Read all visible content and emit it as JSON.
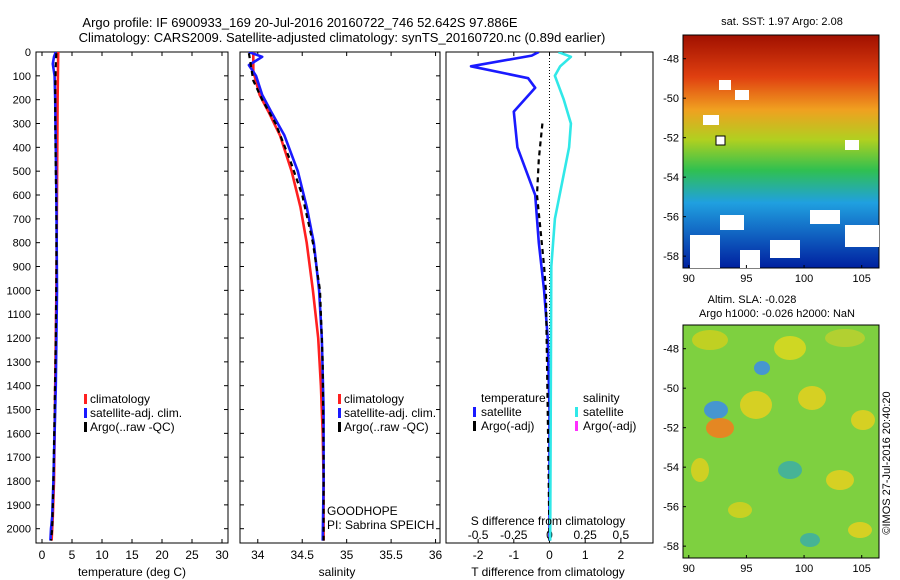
{
  "header": {
    "line1": "Argo profile: IF 6900933_169 20-Jul-2016 20160722_746 52.642S 97.886E",
    "line2": "Climatology: CARS2009. Satellite-adjusted climatology: synTS_20160720.nc (0.89d earlier)"
  },
  "colors": {
    "climatology": "#ff2020",
    "satellite": "#1a1aff",
    "argo": "#000000",
    "sal_satellite": "#30e8e8",
    "sal_argo": "#ff30ff"
  },
  "chart_data": [
    {
      "type": "line",
      "id": "temperature",
      "xlabel": "temperature (deg C)",
      "ylabel": "",
      "xlim": [
        -1,
        31
      ],
      "ylim": [
        2060,
        0
      ],
      "xticks": [
        0,
        5,
        10,
        15,
        20,
        25,
        30
      ],
      "yticks": [
        0,
        100,
        200,
        300,
        400,
        500,
        600,
        700,
        800,
        900,
        1000,
        1100,
        1200,
        1300,
        1400,
        1500,
        1600,
        1700,
        1800,
        1900,
        2000
      ],
      "legend": [
        "climatology",
        "satellite-adj. clim.",
        "Argo(..raw -QC)"
      ],
      "series": [
        {
          "name": "climatology",
          "x": [
            2.7,
            2.65,
            2.6,
            2.55,
            2.5,
            2.45,
            2.4,
            2.3,
            2.2,
            2.1,
            2.0,
            1.8,
            1.6
          ],
          "y": [
            0,
            100,
            200,
            400,
            600,
            800,
            1000,
            1200,
            1400,
            1600,
            1800,
            1950,
            2050
          ]
        },
        {
          "name": "satellite-adj. clim.",
          "x": [
            2.3,
            2.0,
            1.8,
            2.1,
            2.2,
            2.3,
            2.4,
            2.45,
            2.5,
            2.4,
            2.3,
            2.1,
            1.9,
            1.7,
            1.5,
            1.4
          ],
          "y": [
            0,
            20,
            50,
            100,
            200,
            400,
            600,
            800,
            1000,
            1200,
            1400,
            1600,
            1800,
            1950,
            2000,
            2050
          ]
        },
        {
          "name": "Argo(..raw -QC)",
          "x": [
            2.4,
            2.3,
            2.2,
            2.2,
            2.3,
            2.4,
            2.4,
            2.3,
            2.1,
            1.9,
            1.7,
            1.5
          ],
          "y": [
            5,
            50,
            150,
            300,
            500,
            700,
            900,
            1200,
            1500,
            1800,
            2000,
            2050
          ]
        }
      ]
    },
    {
      "type": "line",
      "id": "salinity",
      "xlabel": "salinity",
      "ylabel": "",
      "xlim": [
        33.8,
        36.05
      ],
      "ylim": [
        2060,
        0
      ],
      "xticks": [
        34,
        34.5,
        35,
        35.5,
        36
      ],
      "xticklabels": [
        "34",
        "34.5",
        "35",
        "35.5",
        "36"
      ],
      "legend": [
        "climatology",
        "satellite-adj. clim.",
        "Argo(..raw -QC)"
      ],
      "annotation": [
        "GOODHOPE",
        "PI: Sabrina SPEICH"
      ],
      "series": [
        {
          "name": "climatology",
          "x": [
            33.95,
            33.95,
            34.02,
            34.12,
            34.25,
            34.38,
            34.48,
            34.55,
            34.62,
            34.68,
            34.71,
            34.73,
            34.74,
            34.74
          ],
          "y": [
            0,
            80,
            180,
            250,
            350,
            500,
            650,
            800,
            1000,
            1200,
            1400,
            1600,
            1800,
            2050
          ]
        },
        {
          "name": "satellite-adj. clim.",
          "x": [
            33.9,
            34.05,
            33.9,
            33.98,
            34.05,
            34.15,
            34.3,
            34.45,
            34.55,
            34.63,
            34.69,
            34.72,
            34.74,
            34.74,
            34.73
          ],
          "y": [
            0,
            20,
            55,
            100,
            180,
            250,
            350,
            500,
            650,
            800,
            1000,
            1200,
            1500,
            1800,
            2050
          ]
        },
        {
          "name": "Argo(..raw -QC)",
          "x": [
            33.9,
            33.95,
            34.05,
            34.2,
            34.36,
            34.5,
            34.62,
            34.7,
            34.73,
            34.74,
            34.74
          ],
          "y": [
            5,
            120,
            200,
            300,
            450,
            600,
            800,
            1000,
            1300,
            1700,
            2050
          ]
        }
      ]
    },
    {
      "type": "line",
      "id": "difference",
      "xlabel": "T difference from climatology",
      "x2label": "S difference from climatology",
      "xlim": [
        -2.9,
        2.9
      ],
      "ylim": [
        2060,
        0
      ],
      "xticks": [
        -2,
        -1,
        0,
        1,
        2
      ],
      "x2ticks": [
        -0.5,
        -0.25,
        0,
        0.25,
        0.5
      ],
      "x2ticklabels": [
        "-0.5",
        "-0.25",
        "0",
        "0.25",
        "0.5"
      ],
      "legend_title_left": "temperature",
      "legend_title_right": "salinity",
      "legend": [
        "satellite",
        "Argo(-adj)",
        "satellite",
        "Argo(-adj)"
      ],
      "series": [
        {
          "name": "temperature satellite",
          "x": [
            -0.3,
            -0.5,
            -2.2,
            -0.6,
            -0.4,
            -1.0,
            -0.9,
            -0.4,
            -0.3,
            -0.15,
            -0.05,
            0,
            0
          ],
          "y": [
            0,
            15,
            60,
            110,
            150,
            250,
            400,
            600,
            800,
            1000,
            1200,
            1500,
            2050
          ]
        },
        {
          "name": "temperature Argo(-adj)",
          "x": [
            -0.2,
            -0.3,
            -0.35,
            -0.25,
            -0.15,
            -0.1,
            -0.05,
            0
          ],
          "y": [
            300,
            450,
            600,
            750,
            900,
            1000,
            1500,
            2050
          ]
        },
        {
          "name": "salinity satellite",
          "x": [
            0.25,
            0.6,
            0.3,
            0.15,
            0.4,
            0.6,
            0.55,
            0.35,
            0.15,
            0.05,
            0.02
          ],
          "y": [
            0,
            20,
            60,
            100,
            200,
            300,
            400,
            550,
            700,
            900,
            2050
          ]
        }
      ]
    }
  ],
  "maps": {
    "top": {
      "title": "sat. SST: 1.97 Argo: 2.08",
      "xticks": [
        "90",
        "95",
        "100",
        "105"
      ],
      "yticks": [
        "-48",
        "-50",
        "-52",
        "-54",
        "-56",
        "-58"
      ]
    },
    "bottom": {
      "title1": "Altim. SLA: -0.028",
      "title2": "Argo h1000: -0.026 h2000: NaN",
      "xticks": [
        "90",
        "95",
        "100",
        "105"
      ],
      "yticks": [
        "-48",
        "-50",
        "-52",
        "-54",
        "-56",
        "-58"
      ]
    }
  },
  "footer_stamp": "©IMOS 27-Jul-2016 20:40:20"
}
